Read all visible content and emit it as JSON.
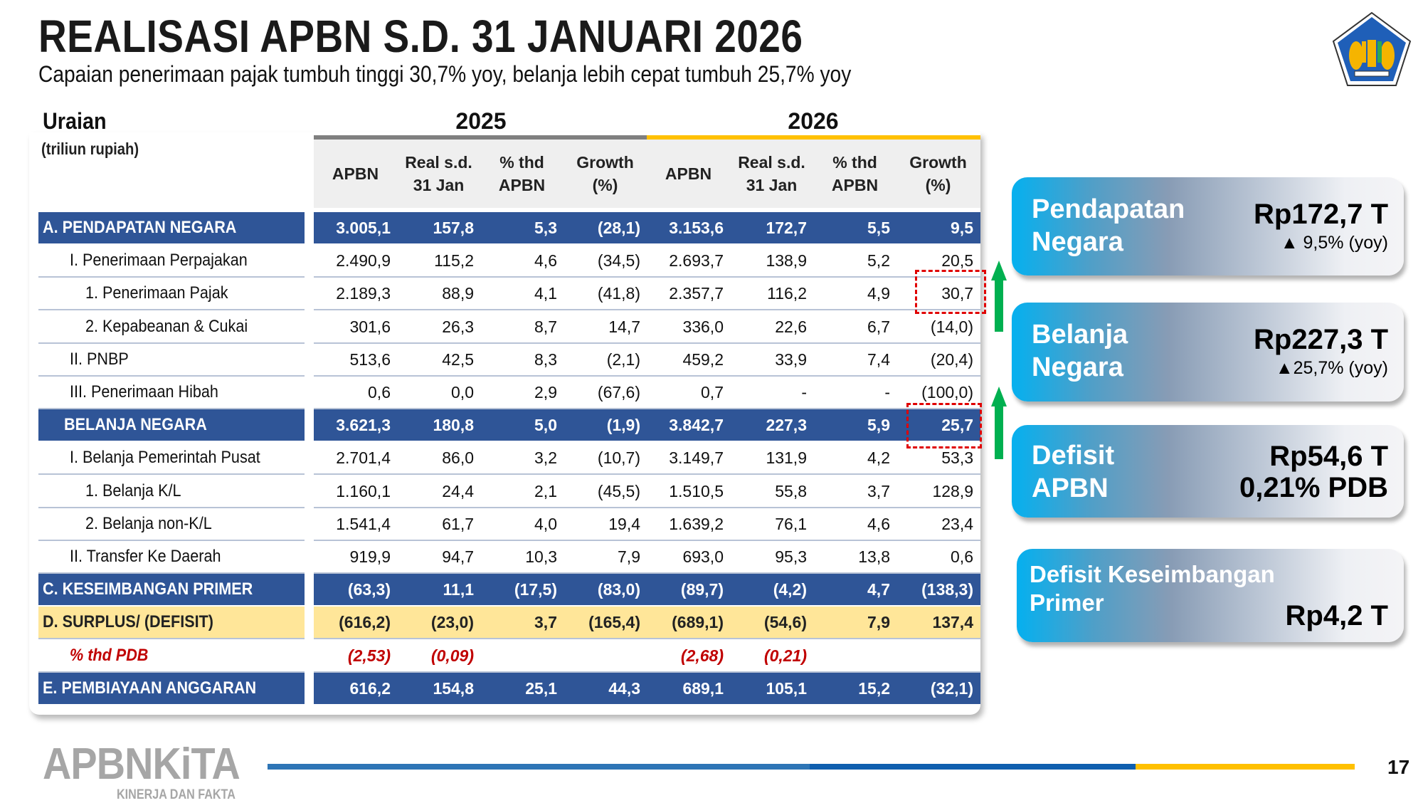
{
  "header": {
    "title": "REALISASI APBN S.D. 31 JANUARI 2026",
    "subtitle": "Capaian penerimaan pajak tumbuh tinggi 30,7% yoy, belanja lebih cepat tumbuh 25,7% yoy"
  },
  "table": {
    "label_header": "Uraian",
    "unit": "(triliun rupiah)",
    "years": [
      "2025",
      "2026"
    ],
    "year_bar_colors": [
      "#7F7F7F",
      "#FFC000"
    ],
    "columns": [
      {
        "l1": "APBN",
        "l2": ""
      },
      {
        "l1": "Real s.d.",
        "l2": "31 Jan"
      },
      {
        "l1": "% thd",
        "l2": "APBN"
      },
      {
        "l1": "Growth",
        "l2": "(%)"
      },
      {
        "l1": "APBN",
        "l2": ""
      },
      {
        "l1": "Real s.d.",
        "l2": "31 Jan"
      },
      {
        "l1": "% thd",
        "l2": "APBN"
      },
      {
        "l1": "Growth",
        "l2": "(%)"
      }
    ],
    "rows": [
      {
        "label": "A. PENDAPATAN NEGARA",
        "type": "section",
        "indent": 0,
        "values": [
          "3.005,1",
          "157,8",
          "5,3",
          "(28,1)",
          "3.153,6",
          "172,7",
          "5,5",
          "9,5"
        ]
      },
      {
        "label": "I. Penerimaan Perpajakan",
        "type": "normal",
        "indent": 1,
        "values": [
          "2.490,9",
          "115,2",
          "4,6",
          "(34,5)",
          "2.693,7",
          "138,9",
          "5,2",
          "20,5"
        ]
      },
      {
        "label": "1.  Penerimaan Pajak",
        "type": "normal",
        "indent": 2,
        "values": [
          "2.189,3",
          "88,9",
          "4,1",
          "(41,8)",
          "2.357,7",
          "116,2",
          "4,9",
          "30,7"
        ]
      },
      {
        "label": "2.  Kepabeanan & Cukai",
        "type": "normal",
        "indent": 2,
        "values": [
          "301,6",
          "26,3",
          "8,7",
          "14,7",
          "336,0",
          "22,6",
          "6,7",
          "(14,0)"
        ]
      },
      {
        "label": "II. PNBP",
        "type": "normal",
        "indent": 1,
        "values": [
          "513,6",
          "42,5",
          "8,3",
          "(2,1)",
          "459,2",
          "33,9",
          "7,4",
          "(20,4)"
        ]
      },
      {
        "label": "III. Penerimaan Hibah",
        "type": "normal",
        "indent": 1,
        "values": [
          "0,6",
          "0,0",
          "2,9",
          "(67,6)",
          "0,7",
          "-",
          "-",
          "(100,0)"
        ]
      },
      {
        "label": "BELANJA NEGARA",
        "type": "section",
        "indent": 1,
        "values": [
          "3.621,3",
          "180,8",
          "5,0",
          "(1,9)",
          "3.842,7",
          "227,3",
          "5,9",
          "25,7"
        ]
      },
      {
        "label": "I. Belanja Pemerintah Pusat",
        "type": "normal",
        "indent": 1,
        "values": [
          "2.701,4",
          "86,0",
          "3,2",
          "(10,7)",
          "3.149,7",
          "131,9",
          "4,2",
          "53,3"
        ]
      },
      {
        "label": "1.  Belanja K/L",
        "type": "normal",
        "indent": 2,
        "values": [
          "1.160,1",
          "24,4",
          "2,1",
          "(45,5)",
          "1.510,5",
          "55,8",
          "3,7",
          "128,9"
        ]
      },
      {
        "label": "2.  Belanja non-K/L",
        "type": "normal",
        "indent": 2,
        "values": [
          "1.541,4",
          "61,7",
          "4,0",
          "19,4",
          "1.639,2",
          "76,1",
          "4,6",
          "23,4"
        ]
      },
      {
        "label": "II. Transfer Ke Daerah",
        "type": "normal",
        "indent": 1,
        "values": [
          "919,9",
          "94,7",
          "10,3",
          "7,9",
          "693,0",
          "95,3",
          "13,8",
          "0,6"
        ]
      },
      {
        "label": "C. KESEIMBANGAN PRIMER",
        "type": "section",
        "indent": 0,
        "values": [
          "(63,3)",
          "11,1",
          "(17,5)",
          "(83,0)",
          "(89,7)",
          "(4,2)",
          "4,7",
          "(138,3)"
        ]
      },
      {
        "label": "D. SURPLUS/ (DEFISIT)",
        "type": "yellow",
        "indent": 0,
        "values": [
          "(616,2)",
          "(23,0)",
          "3,7",
          "(165,4)",
          "(689,1)",
          "(54,6)",
          "7,9",
          "137,4"
        ]
      },
      {
        "label": "% thd PDB",
        "type": "pdb",
        "indent": 1,
        "values": [
          "(2,53)",
          "(0,09)",
          "",
          "",
          "(2,68)",
          "(0,21)",
          "",
          ""
        ]
      },
      {
        "label": "E. PEMBIAYAAN ANGGARAN",
        "type": "section",
        "indent": 0,
        "values": [
          "616,2",
          "154,8",
          "25,1",
          "44,3",
          "689,1",
          "105,1",
          "15,2",
          "(32,1)"
        ]
      }
    ]
  },
  "cards": [
    {
      "title1": "Pendapatan",
      "title2": "Negara",
      "value": "Rp172,7 T",
      "sub": "▲ 9,5% (yoy)"
    },
    {
      "title1": "Belanja",
      "title2": "Negara",
      "value": "Rp227,3 T",
      "sub": "▲25,7% (yoy)"
    },
    {
      "title1": "Defisit",
      "title2": "APBN",
      "value": "Rp54,6 T",
      "sub": "0,21% PDB"
    },
    {
      "title1": "Defisit Keseimbangan",
      "title2": "Primer",
      "value": "Rp4,2 T",
      "sub": ""
    }
  ],
  "footer": {
    "brand": "APBNKiTA",
    "tagline": "KINERJA DAN FAKTA",
    "page": "17",
    "line_colors": [
      "#2E75B6",
      "#0F5FAF",
      "#FFC000"
    ]
  },
  "colors": {
    "section_row": "#2F5597",
    "deficit_row": "#FFE699",
    "pdb_text": "#C00000",
    "highlight_box": "#E00000",
    "arrow": "#00B050"
  }
}
